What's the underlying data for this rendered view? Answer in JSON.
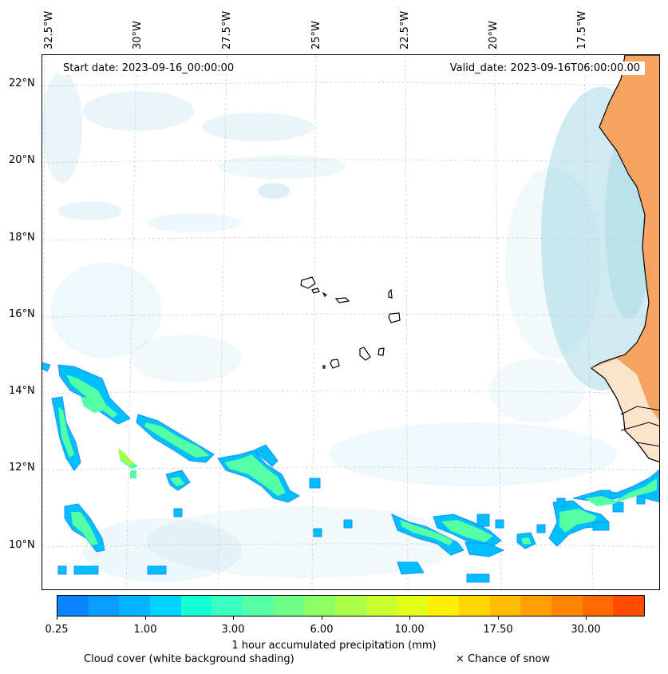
{
  "map": {
    "start_date": "Start date: 2023-09-16_00:00:00",
    "valid_date": "Valid_date: 2023-09-16T06:00:00.00",
    "lon_labels": [
      "32.5°W",
      "30°W",
      "27.5°W",
      "25°W",
      "22.5°W",
      "20°W",
      "17.5°W"
    ],
    "lat_labels": [
      "22°N",
      "20°N",
      "18°N",
      "16°N",
      "14°N",
      "12°N",
      "10°N"
    ],
    "land_color": "#f4a460",
    "coast_color": "#000000",
    "cloud_color": "#a8d8e6"
  },
  "colorbar": {
    "title": "1 hour accumulated precipitation (mm)",
    "tick_labels": [
      "0.25",
      "1.00",
      "3.00",
      "6.00",
      "10.00",
      "17.50",
      "30.00"
    ],
    "colors": [
      "#0a84ff",
      "#0a9cff",
      "#00b4ff",
      "#00d2ff",
      "#14ffd6",
      "#3affc0",
      "#55ffa5",
      "#6fff86",
      "#8dff64",
      "#aaff48",
      "#c8ff2e",
      "#e2ff16",
      "#fff000",
      "#ffd600",
      "#ffbc00",
      "#ffa000",
      "#ff8400",
      "#ff6a00",
      "#ff4c00"
    ]
  },
  "legend": {
    "cloud_cover": "Cloud cover (white background shading)",
    "snow": "× Chance of snow"
  }
}
